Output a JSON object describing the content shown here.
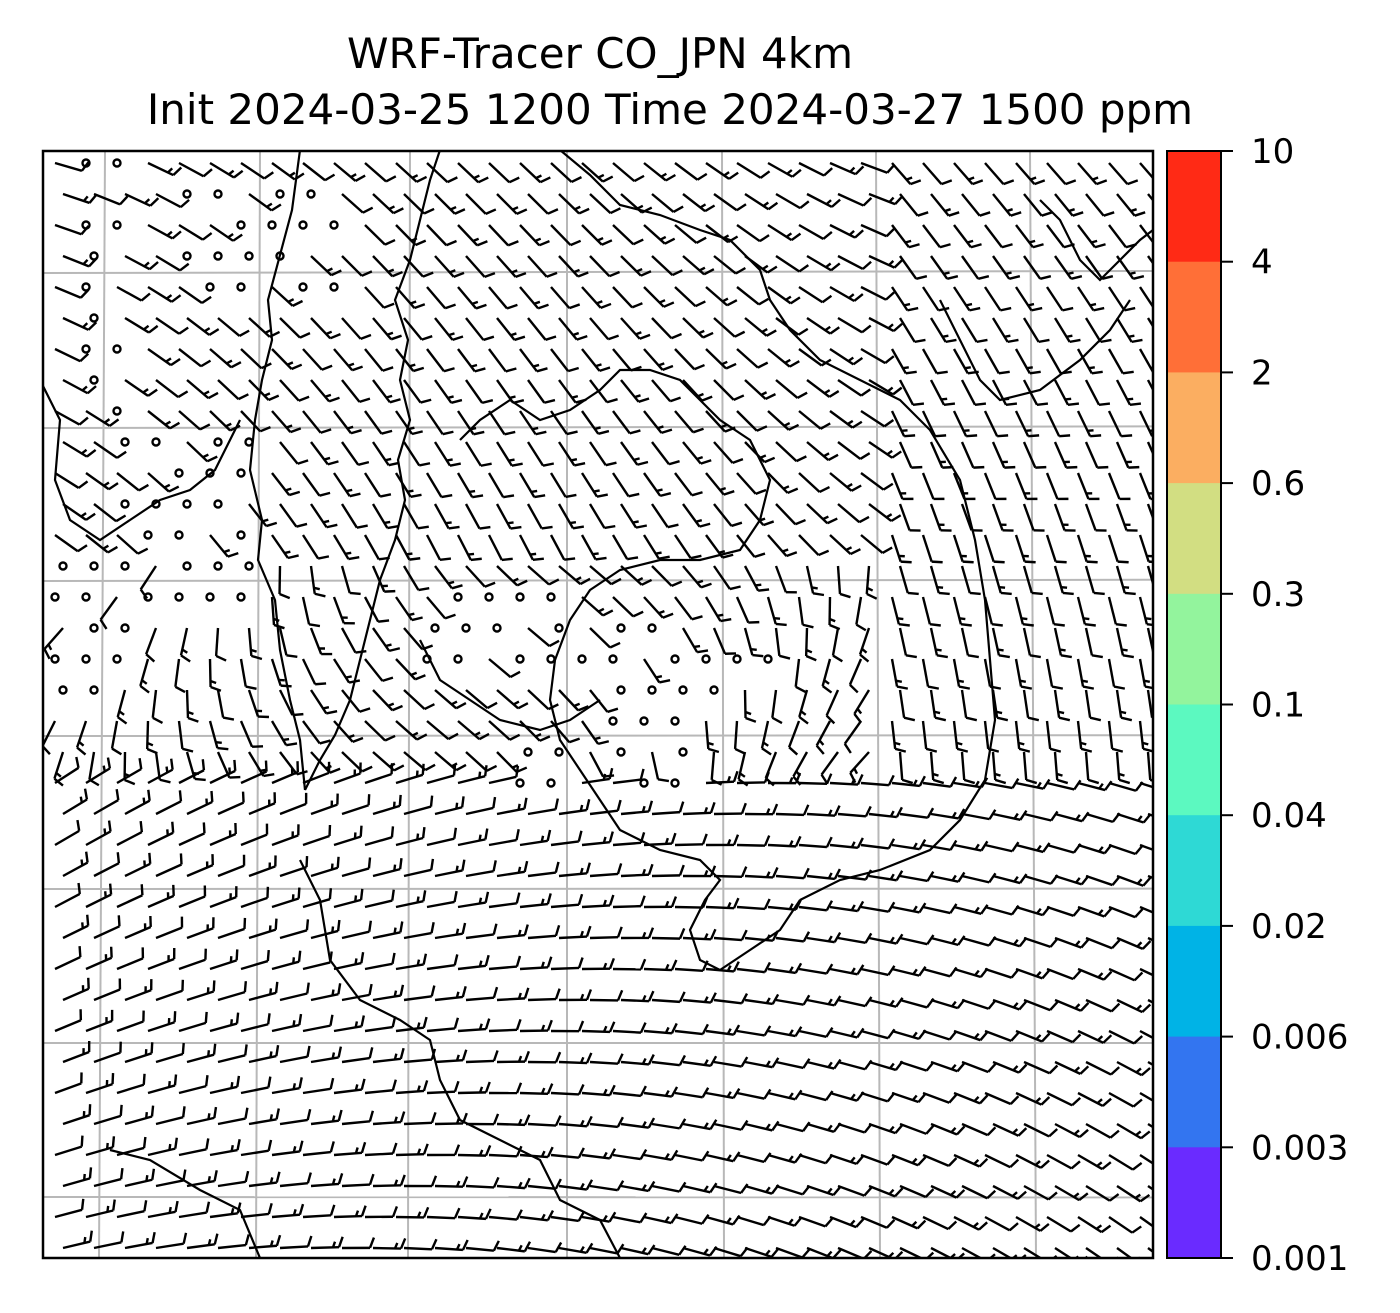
{
  "title": {
    "line1": "WRF-Tracer CO_JPN 4km",
    "line2": "Init 2024-03-25 1200 Time 2024-03-27 1500 ppm"
  },
  "map": {
    "variable": "CO tracer concentration",
    "units": "ppm",
    "grid_lines": true,
    "grid_color": "#b8b8b8",
    "overlay": "wind barbs",
    "coastline_color": "#000000",
    "shading": "none visible (all values below 0.001)"
  },
  "colorbar": {
    "orientation": "vertical",
    "placement": "right",
    "tick_labels": [
      "10",
      "4",
      "2",
      "0.6",
      "0.3",
      "0.1",
      "0.04",
      "0.02",
      "0.006",
      "0.003",
      "0.001"
    ],
    "bands_top_to_bottom": [
      {
        "range": "4-10",
        "color": "#ff2a15"
      },
      {
        "range": "2-4",
        "color": "#ff6f37"
      },
      {
        "range": "0.6-2",
        "color": "#fbae61"
      },
      {
        "range": "0.3-0.6",
        "color": "#d2de82"
      },
      {
        "range": "0.1-0.3",
        "color": "#93f49d"
      },
      {
        "range": "0.04-0.1",
        "color": "#5cf9c0"
      },
      {
        "range": "0.02-0.04",
        "color": "#2ed9d5"
      },
      {
        "range": "0.006-0.02",
        "color": "#00b3e6"
      },
      {
        "range": "0.003-0.006",
        "color": "#3375f0"
      },
      {
        "range": "0.001-0.003",
        "color": "#6a2bff"
      }
    ]
  }
}
